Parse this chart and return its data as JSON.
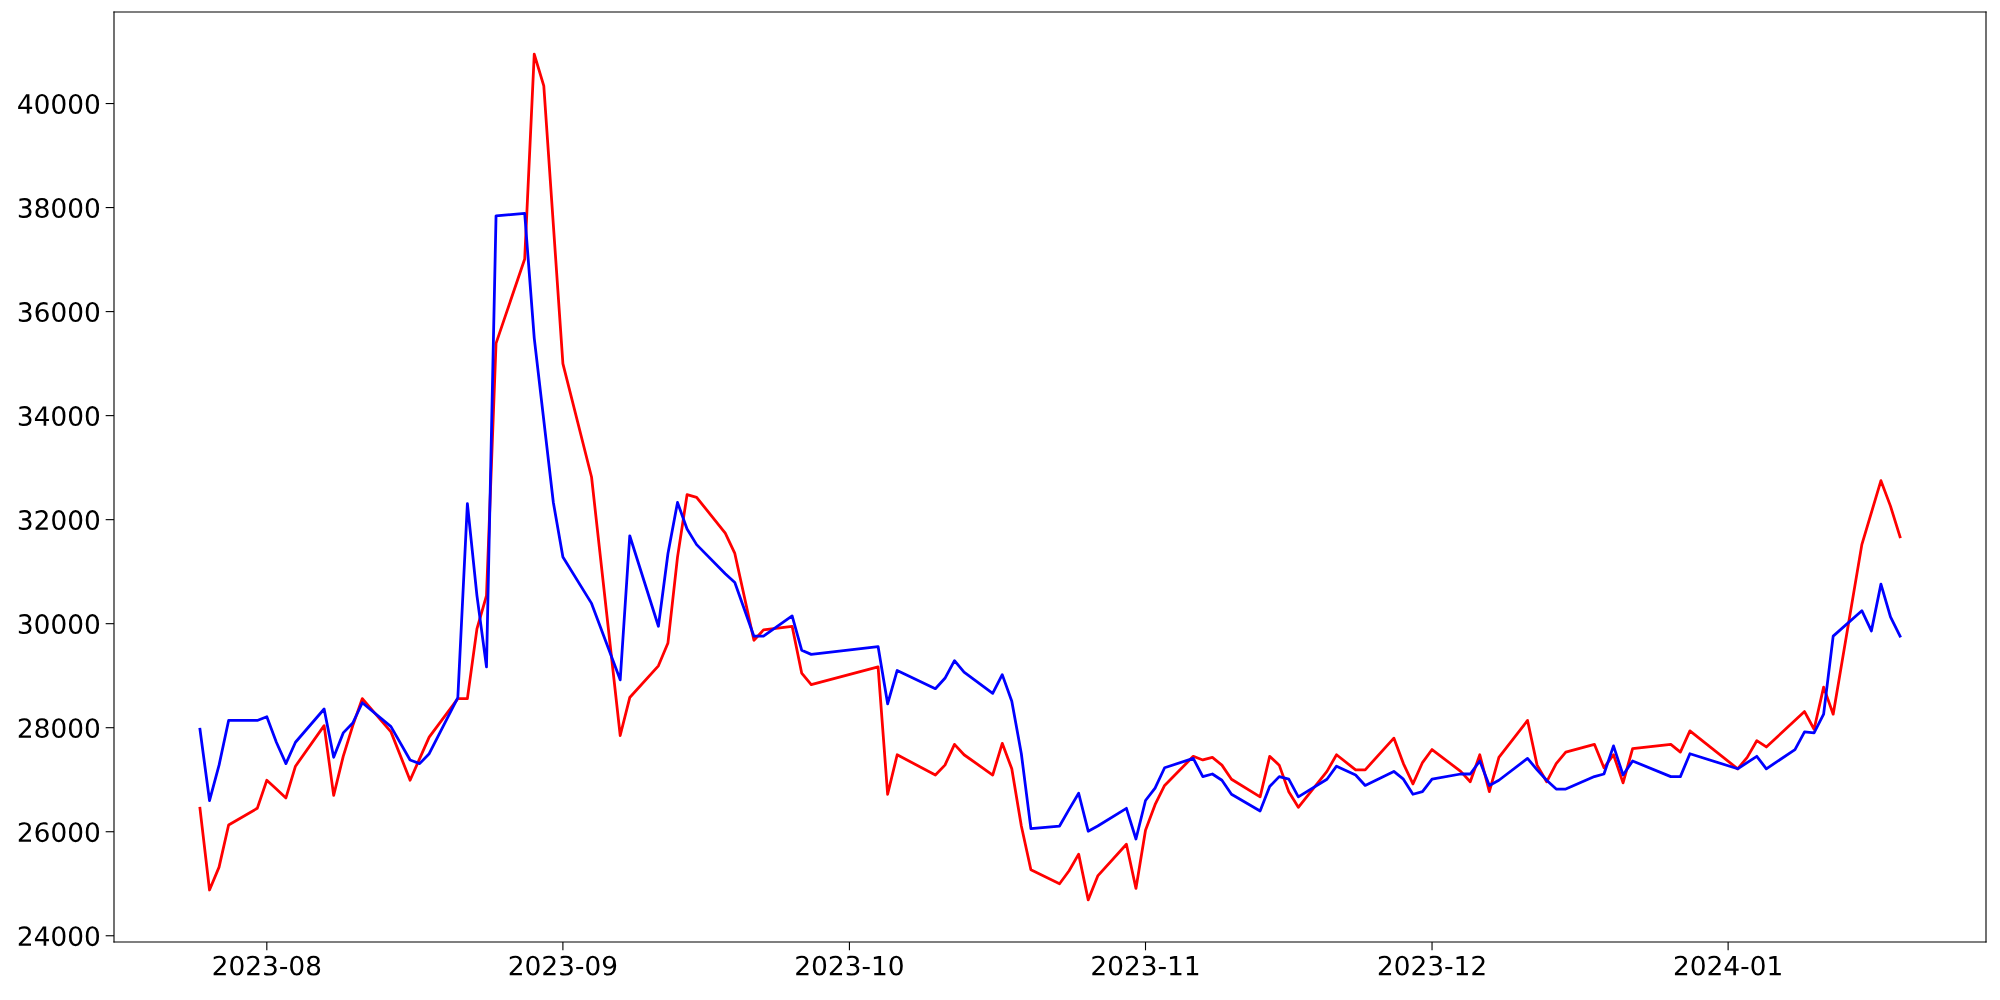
{
  "chart_data": {
    "type": "line",
    "xlim": [
      "2023-07-16",
      "2024-01-28"
    ],
    "ylim": [
      23880,
      41760
    ],
    "xticks": [
      "2023-08",
      "2023-09",
      "2023-10",
      "2023-11",
      "2023-12",
      "2024-01"
    ],
    "yticks": [
      24000,
      26000,
      28000,
      30000,
      32000,
      34000,
      36000,
      38000,
      40000
    ],
    "grid": false,
    "marker": "none",
    "line_style": "solid",
    "series": [
      {
        "color": "#ff0000",
        "x": [
          "2023-07-25",
          "2023-07-26",
          "2023-07-27",
          "2023-07-28",
          "2023-07-31",
          "2023-08-01",
          "2023-08-02",
          "2023-08-03",
          "2023-08-04",
          "2023-08-07",
          "2023-08-08",
          "2023-08-09",
          "2023-08-10",
          "2023-08-11",
          "2023-08-14",
          "2023-08-16",
          "2023-08-18",
          "2023-08-21",
          "2023-08-22",
          "2023-08-23",
          "2023-08-24",
          "2023-08-25",
          "2023-08-28",
          "2023-08-29",
          "2023-08-30",
          "2023-09-01",
          "2023-09-04",
          "2023-09-07",
          "2023-09-08",
          "2023-09-11",
          "2023-09-12",
          "2023-09-13",
          "2023-09-14",
          "2023-09-15",
          "2023-09-18",
          "2023-09-19",
          "2023-09-21",
          "2023-09-22",
          "2023-09-25",
          "2023-09-26",
          "2023-09-27",
          "2023-10-04",
          "2023-10-05",
          "2023-10-06",
          "2023-10-10",
          "2023-10-11",
          "2023-10-12",
          "2023-10-13",
          "2023-10-16",
          "2023-10-17",
          "2023-10-18",
          "2023-10-19",
          "2023-10-20",
          "2023-10-23",
          "2023-10-24",
          "2023-10-25",
          "2023-10-26",
          "2023-10-27",
          "2023-10-30",
          "2023-10-31",
          "2023-11-01",
          "2023-11-02",
          "2023-11-03",
          "2023-11-06",
          "2023-11-07",
          "2023-11-08",
          "2023-11-09",
          "2023-11-10",
          "2023-11-13",
          "2023-11-14",
          "2023-11-15",
          "2023-11-16",
          "2023-11-17",
          "2023-11-20",
          "2023-11-21",
          "2023-11-23",
          "2023-11-24",
          "2023-11-27",
          "2023-11-28",
          "2023-11-29",
          "2023-11-30",
          "2023-12-01",
          "2023-12-04",
          "2023-12-05",
          "2023-12-06",
          "2023-12-07",
          "2023-12-08",
          "2023-12-11",
          "2023-12-12",
          "2023-12-13",
          "2023-12-14",
          "2023-12-15",
          "2023-12-18",
          "2023-12-19",
          "2023-12-20",
          "2023-12-21",
          "2023-12-22",
          "2023-12-26",
          "2023-12-27",
          "2023-12-28",
          "2024-01-02",
          "2024-01-03",
          "2024-01-04",
          "2024-01-05",
          "2024-01-09",
          "2024-01-10",
          "2024-01-11",
          "2024-01-12",
          "2024-01-15",
          "2024-01-17",
          "2024-01-18",
          "2024-01-19"
        ],
        "values": [
          26450,
          24880,
          25320,
          26130,
          26450,
          26990,
          26820,
          26650,
          27260,
          28040,
          26700,
          27450,
          28040,
          28560,
          27920,
          26990,
          27820,
          28560,
          28560,
          29900,
          30540,
          35390,
          37010,
          40950,
          40340,
          35000,
          32820,
          27850,
          28580,
          29190,
          29630,
          31280,
          32480,
          32430,
          31740,
          31350,
          29680,
          29880,
          29950,
          29050,
          28830,
          29170,
          26720,
          27480,
          27090,
          27280,
          27680,
          27480,
          27090,
          27700,
          27210,
          26110,
          25270,
          25000,
          25250,
          25570,
          24690,
          25150,
          25760,
          24910,
          26030,
          26520,
          26890,
          27450,
          27380,
          27430,
          27280,
          27010,
          26670,
          27450,
          27280,
          26770,
          26470,
          27160,
          27480,
          27190,
          27190,
          27800,
          27310,
          26920,
          27330,
          27580,
          27160,
          26960,
          27480,
          26770,
          27430,
          28140,
          27280,
          26960,
          27310,
          27530,
          27680,
          27230,
          27480,
          26940,
          27600,
          27680,
          27530,
          27940,
          27210,
          27430,
          27750,
          27630,
          28310,
          27970,
          28780,
          28260,
          31520,
          32750,
          32260,
          31670
        ]
      },
      {
        "color": "#0000ff",
        "x": [
          "2023-07-25",
          "2023-07-26",
          "2023-07-27",
          "2023-07-28",
          "2023-07-31",
          "2023-08-01",
          "2023-08-02",
          "2023-08-03",
          "2023-08-04",
          "2023-08-07",
          "2023-08-08",
          "2023-08-09",
          "2023-08-10",
          "2023-08-11",
          "2023-08-14",
          "2023-08-16",
          "2023-08-17",
          "2023-08-18",
          "2023-08-21",
          "2023-08-22",
          "2023-08-23",
          "2023-08-24",
          "2023-08-25",
          "2023-08-28",
          "2023-08-29",
          "2023-08-31",
          "2023-09-01",
          "2023-09-04",
          "2023-09-07",
          "2023-09-08",
          "2023-09-11",
          "2023-09-12",
          "2023-09-13",
          "2023-09-14",
          "2023-09-15",
          "2023-09-18",
          "2023-09-19",
          "2023-09-21",
          "2023-09-22",
          "2023-09-25",
          "2023-09-26",
          "2023-09-27",
          "2023-10-04",
          "2023-10-05",
          "2023-10-06",
          "2023-10-10",
          "2023-10-11",
          "2023-10-12",
          "2023-10-13",
          "2023-10-16",
          "2023-10-17",
          "2023-10-18",
          "2023-10-19",
          "2023-10-20",
          "2023-10-23",
          "2023-10-24",
          "2023-10-25",
          "2023-10-26",
          "2023-10-27",
          "2023-10-30",
          "2023-10-31",
          "2023-11-01",
          "2023-11-02",
          "2023-11-03",
          "2023-11-06",
          "2023-11-07",
          "2023-11-08",
          "2023-11-09",
          "2023-11-10",
          "2023-11-13",
          "2023-11-14",
          "2023-11-15",
          "2023-11-16",
          "2023-11-17",
          "2023-11-20",
          "2023-11-21",
          "2023-11-23",
          "2023-11-24",
          "2023-11-27",
          "2023-11-28",
          "2023-11-29",
          "2023-11-30",
          "2023-12-01",
          "2023-12-04",
          "2023-12-05",
          "2023-12-06",
          "2023-12-07",
          "2023-12-08",
          "2023-12-11",
          "2023-12-12",
          "2023-12-13",
          "2023-12-14",
          "2023-12-15",
          "2023-12-18",
          "2023-12-19",
          "2023-12-20",
          "2023-12-21",
          "2023-12-22",
          "2023-12-26",
          "2023-12-27",
          "2023-12-28",
          "2024-01-02",
          "2024-01-04",
          "2024-01-05",
          "2024-01-08",
          "2024-01-09",
          "2024-01-10",
          "2024-01-11",
          "2024-01-12",
          "2024-01-15",
          "2024-01-16",
          "2024-01-17",
          "2024-01-18",
          "2024-01-19"
        ],
        "values": [
          27970,
          26600,
          27280,
          28140,
          28140,
          28210,
          27720,
          27310,
          27720,
          28360,
          27430,
          27900,
          28090,
          28480,
          28020,
          27380,
          27310,
          27500,
          28580,
          32310,
          30540,
          29170,
          37840,
          37890,
          35490,
          32330,
          31280,
          30390,
          28920,
          31690,
          29950,
          31350,
          32330,
          31820,
          31520,
          30960,
          30790,
          29760,
          29760,
          30150,
          29490,
          29410,
          29560,
          28460,
          29100,
          28750,
          28950,
          29290,
          29070,
          28660,
          29020,
          28510,
          27500,
          26060,
          26110,
          26430,
          26740,
          26010,
          26110,
          26450,
          25860,
          26600,
          26840,
          27230,
          27410,
          27060,
          27110,
          26990,
          26720,
          26400,
          26870,
          27060,
          27010,
          26670,
          27010,
          27260,
          27090,
          26890,
          27160,
          27010,
          26720,
          26770,
          27010,
          27110,
          27110,
          27360,
          26890,
          26990,
          27410,
          27190,
          26990,
          26820,
          26820,
          27060,
          27110,
          27650,
          27090,
          27360,
          27060,
          27060,
          27500,
          27210,
          27450,
          27210,
          27580,
          27920,
          27900,
          28260,
          29760,
          30250,
          29860,
          30760,
          30130,
          29760
        ]
      }
    ]
  }
}
